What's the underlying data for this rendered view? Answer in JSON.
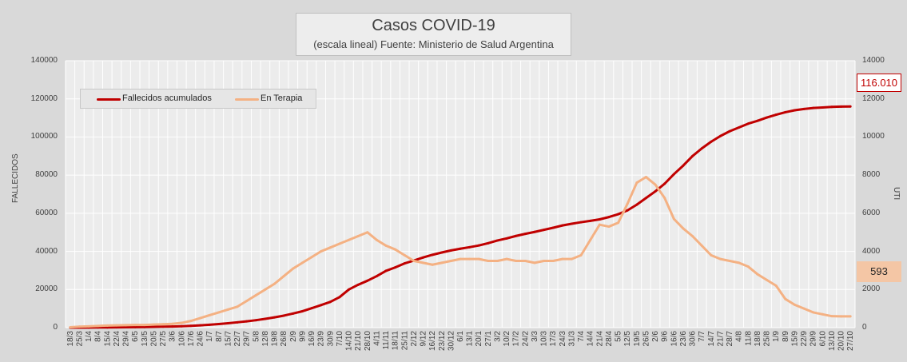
{
  "chart_data": {
    "type": "line",
    "title": "Casos COVID-19",
    "subtitle": "(escala lineal) Fuente: Ministerio de Salud Argentina",
    "ylabel": "FALLECIDOS",
    "y2label": "UTI",
    "ylim": [
      0,
      140000
    ],
    "y2lim": [
      0,
      14000
    ],
    "yticks": [
      "140000",
      "120000",
      "100000",
      "80000",
      "60000",
      "40000",
      "20000",
      "0"
    ],
    "y2ticks": [
      "14000",
      "12000",
      "10000",
      "8000",
      "6000",
      "4000",
      "2000",
      "0"
    ],
    "grid": true,
    "legend_position": "top-left",
    "x_labels": [
      "18/3",
      "25/3",
      "1/4",
      "8/4",
      "15/4",
      "22/4",
      "29/4",
      "6/5",
      "13/5",
      "20/5",
      "27/5",
      "3/6",
      "10/6",
      "17/6",
      "24/6",
      "1/7",
      "8/7",
      "15/7",
      "22/7",
      "29/7",
      "5/8",
      "12/8",
      "19/8",
      "26/8",
      "2/9",
      "9/9",
      "16/9",
      "23/9",
      "30/9",
      "7/10",
      "14/10",
      "21/10",
      "28/10",
      "4/11",
      "11/11",
      "18/11",
      "25/11",
      "2/12",
      "9/12",
      "16/12",
      "23/12",
      "30/12",
      "6/1",
      "13/1",
      "20/1",
      "27/1",
      "3/2",
      "10/2",
      "17/2",
      "24/2",
      "3/3",
      "10/3",
      "17/3",
      "24/3",
      "31/3",
      "7/4",
      "14/4",
      "21/4",
      "28/4",
      "5/5",
      "12/5",
      "19/5",
      "26/5",
      "2/6",
      "9/6",
      "16/6",
      "23/6",
      "30/6",
      "7/7",
      "14/7",
      "21/7",
      "28/7",
      "4/8",
      "11/8",
      "18/8",
      "25/8",
      "1/9",
      "8/9",
      "15/9",
      "22/9",
      "29/9",
      "6/10",
      "13/10",
      "20/10",
      "27/10"
    ],
    "series": [
      {
        "name": "Fallecidos acumulados",
        "axis": "left",
        "color": "#c00000",
        "values": [
          0,
          20,
          50,
          80,
          120,
          160,
          200,
          250,
          320,
          400,
          500,
          600,
          750,
          950,
          1200,
          1500,
          1900,
          2300,
          2800,
          3300,
          3900,
          4600,
          5400,
          6300,
          7400,
          8600,
          10200,
          11800,
          13500,
          16000,
          20000,
          22500,
          24600,
          27000,
          29800,
          31600,
          33700,
          35200,
          36800,
          38200,
          39400,
          40500,
          41400,
          42200,
          43100,
          44300,
          45700,
          46800,
          48100,
          49200,
          50200,
          51300,
          52400,
          53600,
          54500,
          55300,
          56000,
          56800,
          58000,
          59500,
          61500,
          64500,
          68000,
          71500,
          75500,
          80500,
          85000,
          90000,
          94000,
          97500,
          100500,
          103000,
          105000,
          107000,
          108500,
          110200,
          111700,
          113000,
          114000,
          114700,
          115200,
          115500,
          115800,
          115950,
          116010
        ]
      },
      {
        "name": "En Terapia",
        "axis": "right",
        "color": "#f4b183",
        "values": [
          20,
          50,
          70,
          90,
          110,
          120,
          130,
          140,
          140,
          160,
          180,
          200,
          250,
          350,
          500,
          650,
          800,
          950,
          1100,
          1400,
          1700,
          2000,
          2300,
          2700,
          3100,
          3400,
          3700,
          4000,
          4200,
          4400,
          4600,
          4800,
          5000,
          4600,
          4300,
          4100,
          3800,
          3500,
          3400,
          3300,
          3400,
          3500,
          3600,
          3600,
          3600,
          3500,
          3500,
          3600,
          3500,
          3500,
          3400,
          3500,
          3500,
          3600,
          3600,
          3800,
          4600,
          5400,
          5300,
          5500,
          6500,
          7600,
          7900,
          7500,
          6800,
          5700,
          5200,
          4800,
          4300,
          3800,
          3600,
          3500,
          3400,
          3200,
          2800,
          2500,
          2200,
          1500,
          1200,
          1000,
          800,
          700,
          600,
          593,
          593
        ]
      }
    ],
    "callouts": [
      "116.010",
      "593"
    ]
  }
}
